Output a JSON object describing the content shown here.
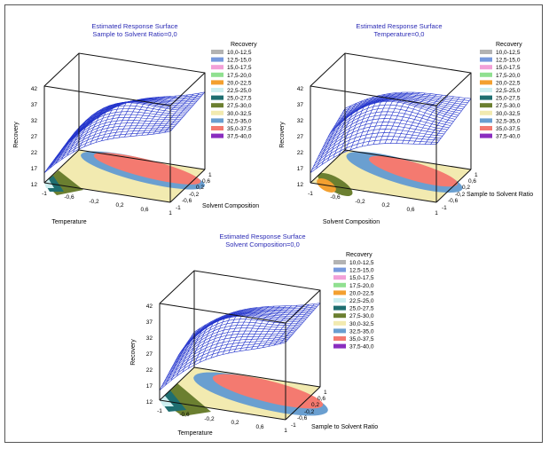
{
  "legend_title": "Recovery",
  "legend_colors": [
    "#b3b3b3",
    "#7799dd",
    "#f2a0d8",
    "#90e090",
    "#f3a030",
    "#cdeff0",
    "#1e6e70",
    "#6b7f30",
    "#f2eab0",
    "#6a9fd0",
    "#f47a70",
    "#8a2dbf"
  ],
  "legend_ranges": [
    "10,0-12,5",
    "12,5-15,0",
    "15,0-17,5",
    "17,5-20,0",
    "20,0-22,5",
    "22,5-25,0",
    "25,0-27,5",
    "27,5-30,0",
    "30,0-32,5",
    "32,5-35,0",
    "35,0-37,5",
    "37,5-40,0"
  ],
  "surface_color": "#2233cc",
  "chart_data": [
    {
      "type": "surface3d",
      "title": "Estimated Response Surface",
      "subtitle": "Sample to Solvent Ratio=0,0",
      "xlabel": "Temperature",
      "ylabel": "Solvent Composition",
      "zlabel": "Recovery",
      "x_ticks": [
        "-1",
        "-0,6",
        "-0,2",
        "0,2",
        "0,6",
        "1"
      ],
      "y_ticks": [
        "-1",
        "-0,6",
        "-0,2",
        "0,2",
        "0,6",
        "1"
      ],
      "z_ticks": [
        "12",
        "17",
        "22",
        "27",
        "32",
        "37",
        "42"
      ],
      "zlim": [
        12,
        42
      ],
      "surface_corners": {
        "xlow_ylow": 14,
        "xlow_yhigh": 16,
        "xhigh_ylow": 34,
        "xhigh_yhigh": 36,
        "max": 42
      }
    },
    {
      "type": "surface3d",
      "title": "Estimated Response Surface",
      "subtitle": "Temperature=0,0",
      "xlabel": "Solvent Composition",
      "ylabel": "Sample to Solvent Ratio",
      "zlabel": "Recovery",
      "x_ticks": [
        "-1",
        "-0,6",
        "-0,2",
        "0,2",
        "0,6",
        "1"
      ],
      "y_ticks": [
        "-1",
        "-0,6",
        "-0,2",
        "0,2",
        "0,6",
        "1"
      ],
      "z_ticks": [
        "12",
        "17",
        "22",
        "27",
        "32",
        "37",
        "42"
      ],
      "zlim": [
        12,
        42
      ],
      "surface_corners": {
        "xlow_ylow": 14,
        "xlow_yhigh": 24,
        "xhigh_ylow": 30,
        "xhigh_yhigh": 34,
        "max": 42
      }
    },
    {
      "type": "surface3d",
      "title": "Estimated Response Surface",
      "subtitle": "Solvent Composition=0,0",
      "xlabel": "Temperature",
      "ylabel": "Sample to Solvent Ratio",
      "zlabel": "Recovery",
      "x_ticks": [
        "-1",
        "-0,6",
        "-0,2",
        "0,2",
        "0,6",
        "1"
      ],
      "y_ticks": [
        "-1",
        "-0,6",
        "-0,2",
        "0,2",
        "0,6",
        "1"
      ],
      "z_ticks": [
        "12",
        "17",
        "22",
        "27",
        "32",
        "37",
        "42"
      ],
      "zlim": [
        12,
        42
      ],
      "surface_corners": {
        "xlow_ylow": 14,
        "xlow_yhigh": 22,
        "xhigh_ylow": 36,
        "xhigh_yhigh": 38,
        "max": 42
      }
    }
  ]
}
